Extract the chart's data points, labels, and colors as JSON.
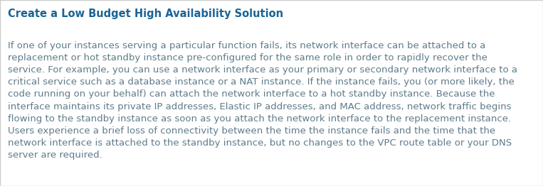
{
  "title": "Create a Low Budget High Availability Solution",
  "title_color": "#1a6496",
  "body_color": "#5d7b8a",
  "background_color": "#ffffff",
  "border_color": "#cccccc",
  "title_fontsize": 10.5,
  "body_fontsize": 9.5,
  "body_lines": [
    "If one of your instances serving a particular function fails, its network interface can be attached to a",
    "replacement or hot standby instance pre-configured for the same role in order to rapidly recover the",
    "service. For example, you can use a network interface as your primary or secondary network interface to a",
    "critical service such as a database instance or a NAT instance. If the instance fails, you (or more likely, the",
    "code running on your behalf) can attach the network interface to a hot standby instance. Because the",
    "interface maintains its private IP addresses, Elastic IP addresses, and MAC address, network traffic begins",
    "flowing to the standby instance as soon as you attach the network interface to the replacement instance.",
    "Users experience a brief loss of connectivity between the time the instance fails and the time that the",
    "network interface is attached to the standby instance, but no changes to the VPC route table or your DNS",
    "server are required."
  ]
}
